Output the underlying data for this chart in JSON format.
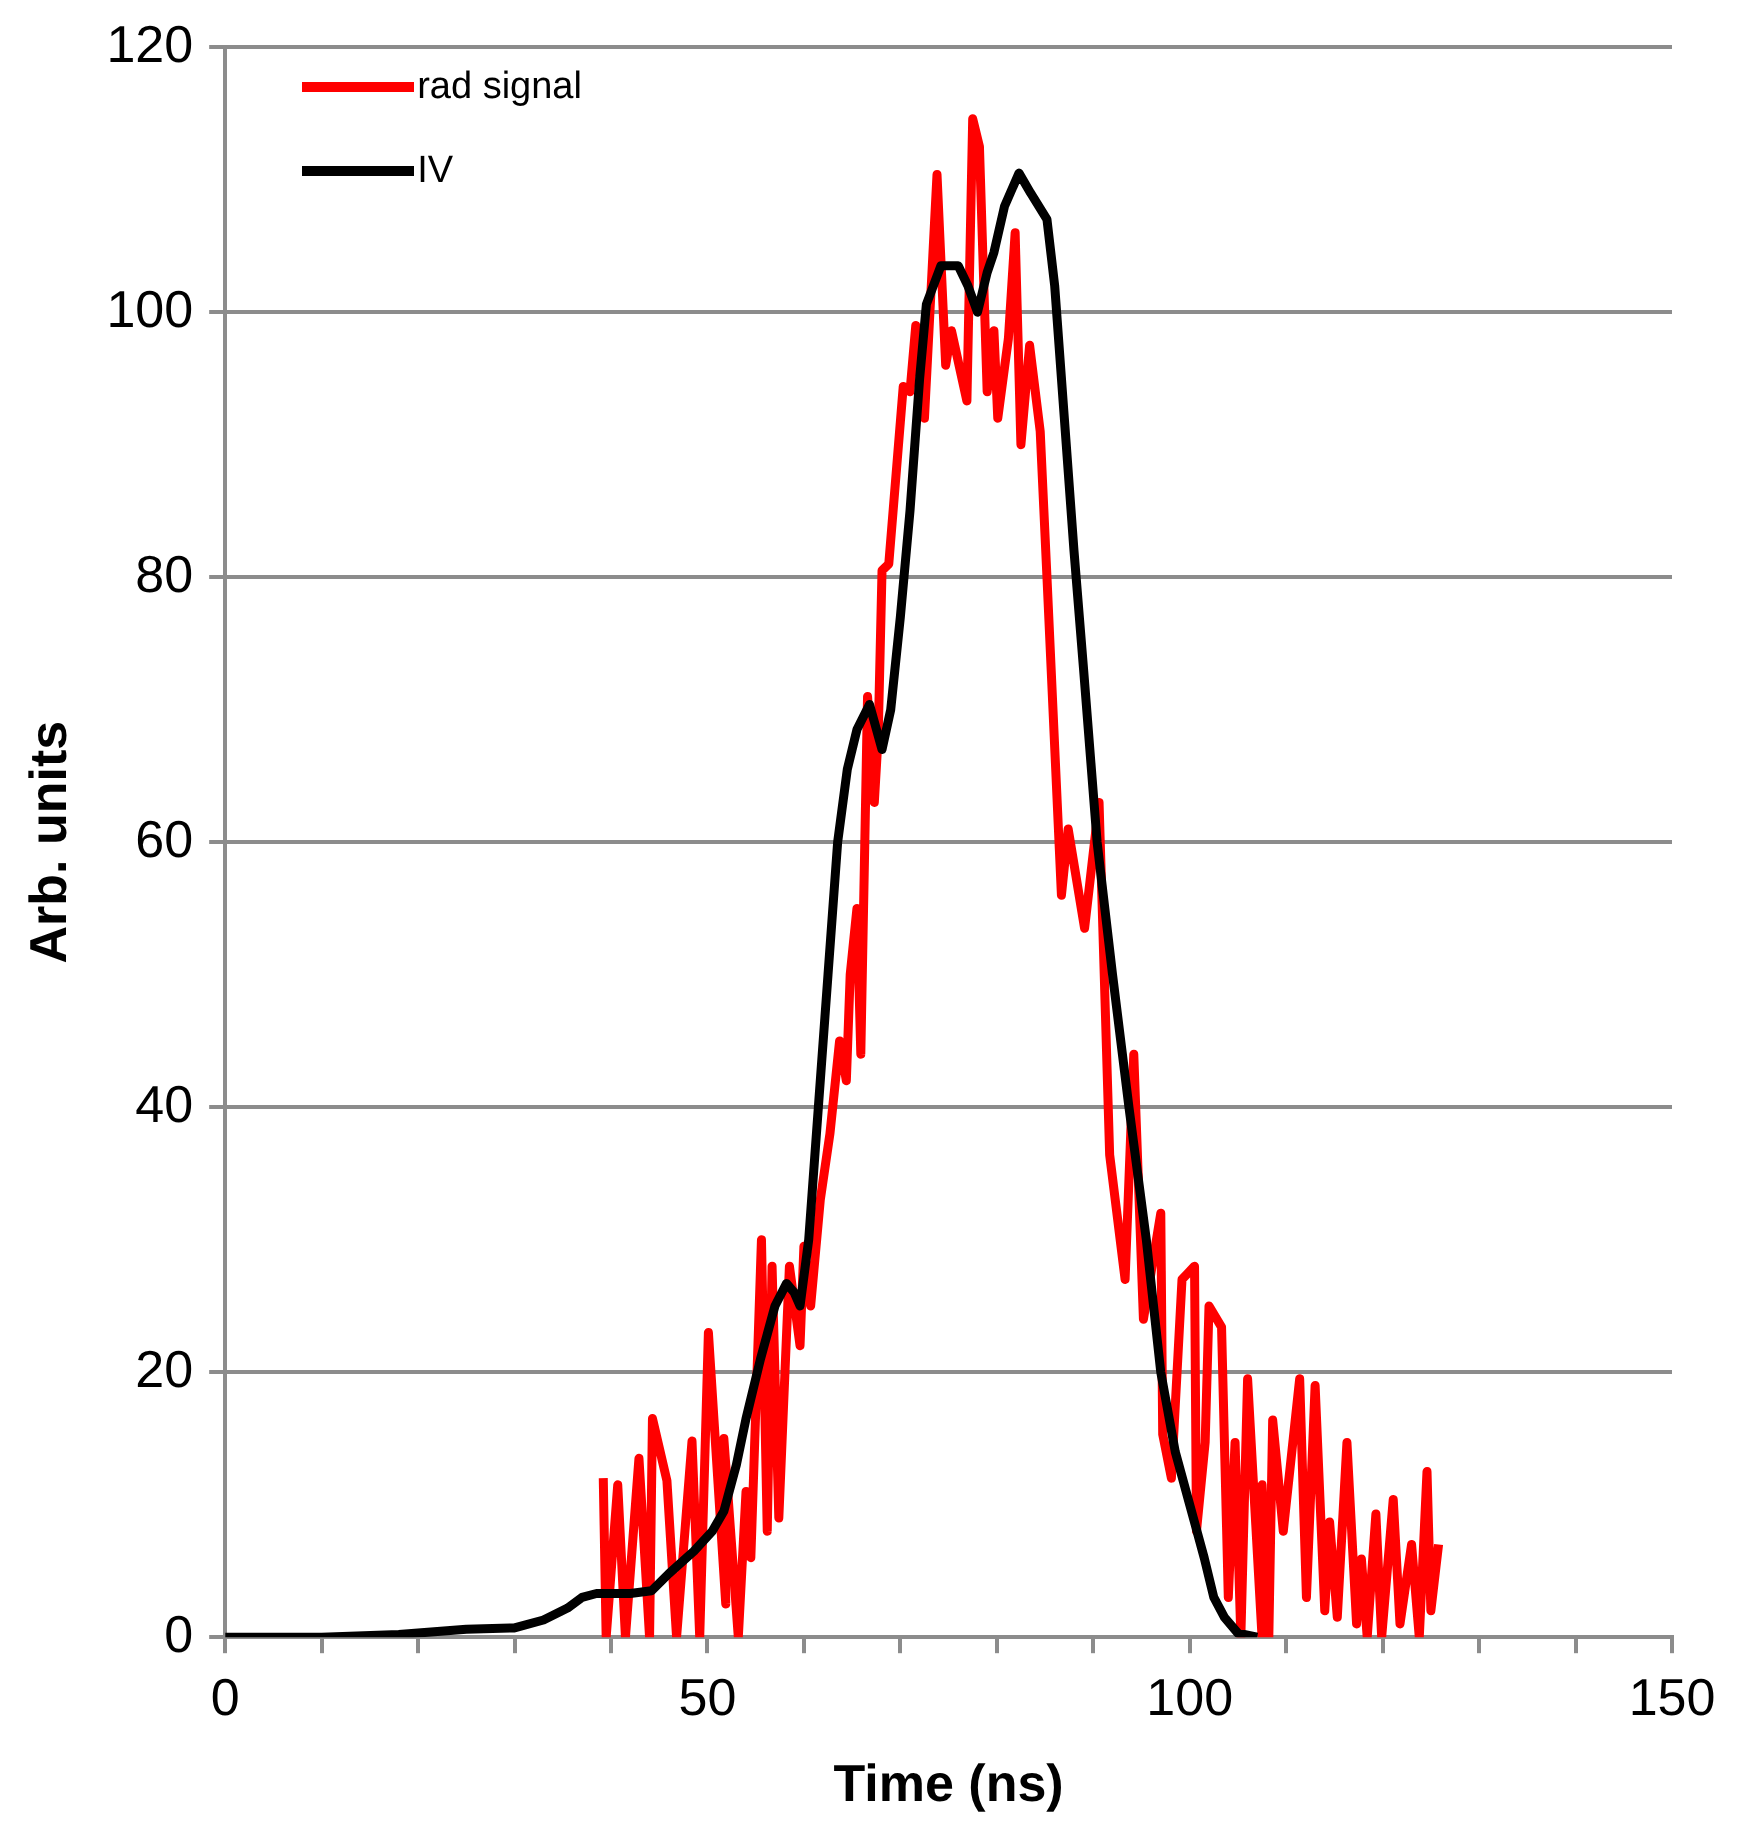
{
  "chart_data": {
    "type": "line",
    "xlabel": "Time (ns)",
    "ylabel": "Arb. units",
    "xlim": [
      0,
      150
    ],
    "xticks": [
      0,
      {
        "value": 10,
        "label": null
      },
      {
        "value": 20,
        "label": null
      },
      {
        "value": 30,
        "label": null
      },
      {
        "value": 40,
        "label": null
      },
      50,
      {
        "value": 60,
        "label": null
      },
      {
        "value": 70,
        "label": null
      },
      {
        "value": 80,
        "label": null
      },
      {
        "value": 90,
        "label": null
      },
      100,
      {
        "value": 110,
        "label": null
      },
      {
        "value": 120,
        "label": null
      },
      {
        "value": 130,
        "label": null
      },
      {
        "value": 140,
        "label": null
      },
      150
    ],
    "ylim": [
      0,
      120
    ],
    "yticks": [
      0,
      20,
      40,
      60,
      80,
      100,
      120
    ],
    "grid": "y",
    "legend": "top left",
    "marker": "none",
    "line_style": "solid",
    "series": [
      {
        "name": "rad signal",
        "color": "#ff0000",
        "x": [
          39.2,
          39.5,
          40.7,
          41.5,
          42.9,
          44,
          44.3,
          45.8,
          46.8,
          48.4,
          49.2,
          50.1,
          51.9,
          51.7,
          53.2,
          54,
          54.5,
          55.6,
          56.2,
          56.7,
          57.4,
          58.5,
          59.6,
          60,
          60.7,
          61.7,
          62.7,
          63.7,
          64.4,
          64.8,
          65.5,
          65.9,
          66.6,
          67.3,
          67.7,
          68.1,
          68.8,
          70.3,
          71,
          71.6,
          72.5,
          73.8,
          74.7,
          75.3,
          76.9,
          77.5,
          78.2,
          79,
          79.7,
          80.1,
          81.2,
          81.9,
          82.5,
          83.4,
          84.5,
          85.2,
          86.7,
          87.4,
          89.1,
          90.6,
          91.7,
          93.3,
          94.2,
          95.2,
          97,
          97.2,
          98.1,
          99.2,
          100.5,
          100.7,
          101.6,
          102,
          103.3,
          104,
          104.7,
          105.3,
          106,
          107.5,
          107.5,
          108.2,
          108.6,
          109.7,
          111.4,
          112.1,
          113,
          114,
          114.5,
          115.3,
          116.3,
          117.3,
          117.8,
          118.4,
          119.3,
          119.9,
          121.1,
          121.8,
          123,
          123.8,
          124.6,
          125,
          125.8
        ],
        "values": [
          12,
          0,
          11.5,
          0,
          13.5,
          0,
          16.5,
          11.8,
          0,
          14.8,
          0,
          23,
          2.5,
          15,
          0,
          11,
          6,
          30,
          8,
          28,
          9,
          28,
          22,
          29.5,
          25,
          33,
          38,
          45,
          42,
          50,
          55,
          44,
          71,
          63,
          68,
          80.5,
          81,
          94.4,
          94,
          99,
          92,
          110.4,
          96,
          98.6,
          93.3,
          114.6,
          112.5,
          94,
          98.6,
          92,
          98,
          106,
          90,
          97.5,
          91,
          80,
          56,
          61,
          53.5,
          63,
          36.4,
          27,
          44,
          24,
          32,
          15.3,
          12,
          27,
          28,
          8,
          14.7,
          25,
          23.4,
          3,
          14.7,
          0,
          19.5,
          0,
          11.5,
          0,
          16.4,
          8,
          19.5,
          3,
          19,
          2,
          8.7,
          1.5,
          14.7,
          1,
          5.9,
          0,
          9.3,
          0,
          10.4,
          1,
          7,
          0,
          12.5,
          2,
          7
        ]
      },
      {
        "name": "IV",
        "color": "#000000",
        "x": [
          0,
          10,
          18,
          25,
          30,
          33,
          35.5,
          37,
          38.5,
          42,
          44.2,
          46,
          48.6,
          50.5,
          51.7,
          53,
          54,
          55.5,
          57,
          58.2,
          59,
          59.6,
          60.5,
          61.5,
          62.5,
          63.5,
          64.5,
          65.5,
          66.8,
          68.1,
          69,
          70,
          71,
          72,
          72.7,
          74.2,
          76,
          77,
          78,
          79,
          79.7,
          80.8,
          82.3,
          83.5,
          85.2,
          86,
          87,
          88,
          89,
          90.4,
          92,
          93.7,
          95.5,
          97,
          98.5,
          100,
          101.5,
          102.5,
          103.6,
          105,
          107
        ],
        "values": [
          0,
          0,
          0.2,
          0.6,
          0.7,
          1.3,
          2.2,
          3,
          3.3,
          3.3,
          3.5,
          4.8,
          6.5,
          8,
          9.5,
          13,
          16.5,
          21,
          25,
          26.7,
          26,
          25,
          30,
          40,
          50,
          60,
          65.5,
          68.5,
          70.4,
          67,
          70,
          77,
          85,
          95,
          100.6,
          103.5,
          103.5,
          102,
          100,
          103,
          104.5,
          108,
          110.5,
          109,
          107,
          102,
          92,
          82,
          73,
          60,
          50,
          40,
          30,
          20,
          14,
          10,
          6,
          3,
          1.5,
          0.3,
          0
        ]
      }
    ]
  }
}
